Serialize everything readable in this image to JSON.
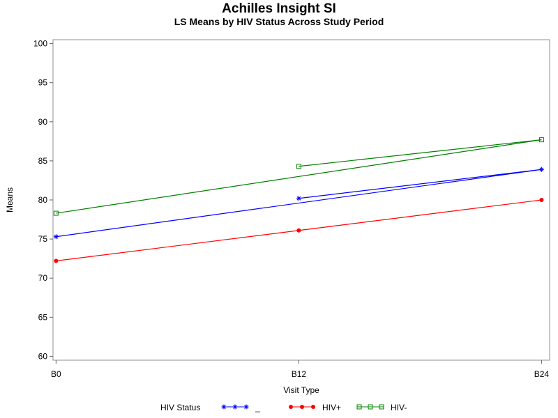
{
  "chart_data": {
    "type": "line",
    "title": "Achilles Insight SI",
    "subtitle": "LS Means by HIV Status Across Study Period",
    "x_label": "Visit Type",
    "y_label": "Means",
    "legend_title": "HIV Status",
    "x": [
      0,
      24,
      12
    ],
    "xlim": [
      -0.15,
      24.4
    ],
    "xticks": [
      {
        "value": 0,
        "label": "B0"
      },
      {
        "value": 12,
        "label": "B12"
      },
      {
        "value": 24,
        "label": "B24"
      }
    ],
    "ylim": [
      59.5,
      100.5
    ],
    "yticks": [
      60,
      65,
      70,
      75,
      80,
      85,
      90,
      95,
      100
    ],
    "grid": false,
    "legend": "bottom",
    "series": [
      {
        "name": "_",
        "color": "#0000ff",
        "marker": "star",
        "values": [
          75.3,
          83.9,
          80.2
        ]
      },
      {
        "name": "HIV+",
        "color": "#ff0000",
        "marker": "dot",
        "values": [
          72.2,
          80.0,
          76.1
        ]
      },
      {
        "name": "HIV-",
        "color": "#008000",
        "marker": "square",
        "values": [
          78.3,
          87.7,
          84.3
        ]
      }
    ]
  }
}
